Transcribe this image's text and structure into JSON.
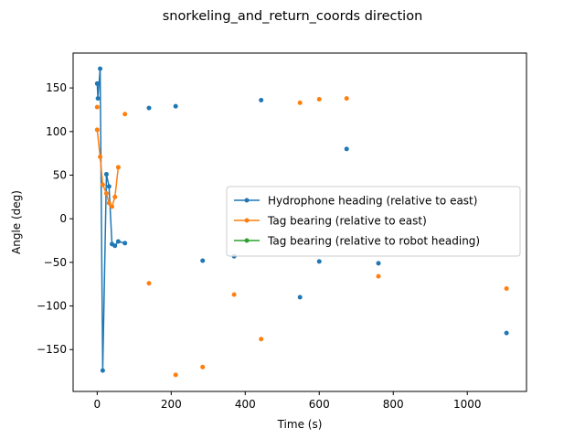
{
  "chart_data": {
    "type": "line",
    "title": "snorkeling_and_return_coords direction",
    "xlabel": "Time (s)",
    "ylabel": "Angle (deg)",
    "xlim": [
      -65,
      1160
    ],
    "ylim": [
      -198,
      190
    ],
    "xticks": [
      0,
      200,
      400,
      600,
      800,
      1000
    ],
    "yticks": [
      -150,
      -100,
      -50,
      0,
      50,
      100,
      150
    ],
    "grid": false,
    "legend_position": "center-right",
    "series": [
      {
        "name": "Hydrophone heading (relative to east)",
        "color": "#1f77b4",
        "connected_points": [
          [
            0,
            155
          ],
          [
            2,
            138
          ],
          [
            8,
            172
          ],
          [
            15,
            -174
          ],
          [
            25,
            51
          ],
          [
            32,
            37
          ],
          [
            40,
            -29
          ],
          [
            48,
            -31
          ],
          [
            57,
            -26
          ],
          [
            75,
            -28
          ]
        ],
        "isolated_points": [
          [
            140,
            127
          ],
          [
            212,
            129
          ],
          [
            285,
            -48
          ],
          [
            370,
            -43
          ],
          [
            443,
            136
          ],
          [
            548,
            -90
          ],
          [
            600,
            -49
          ],
          [
            674,
            80
          ],
          [
            760,
            -51
          ],
          [
            1106,
            -131
          ]
        ]
      },
      {
        "name": "Tag bearing (relative to east)",
        "color": "#ff7f0e",
        "connected_points": [
          [
            0,
            102
          ],
          [
            8,
            71
          ],
          [
            15,
            39
          ],
          [
            25,
            29
          ],
          [
            32,
            18
          ],
          [
            40,
            14
          ],
          [
            48,
            25
          ],
          [
            57,
            59
          ]
        ],
        "isolated_points": [
          [
            0,
            128
          ],
          [
            75,
            120
          ],
          [
            140,
            -74
          ],
          [
            212,
            -179
          ],
          [
            285,
            -170
          ],
          [
            370,
            -87
          ],
          [
            443,
            -138
          ],
          [
            548,
            133
          ],
          [
            600,
            137
          ],
          [
            674,
            138
          ],
          [
            760,
            -66
          ],
          [
            1106,
            -80
          ]
        ]
      },
      {
        "name": "Tag bearing (relative to robot heading)",
        "color": "#2ca02c",
        "connected_points": [],
        "isolated_points": []
      }
    ]
  }
}
